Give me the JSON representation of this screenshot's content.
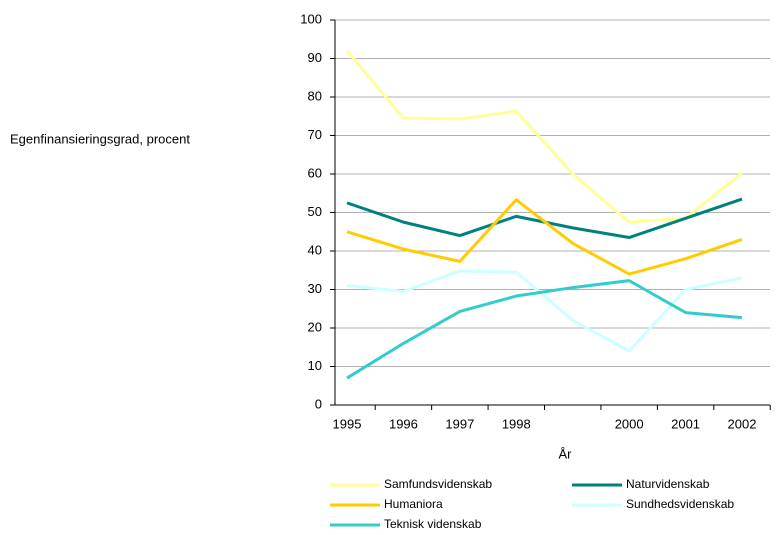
{
  "chart_data": {
    "type": "line",
    "y_label": "Egenfinansieringsgrad, procent",
    "x_label": "År",
    "categories": [
      "1995",
      "1996",
      "1997",
      "1998",
      null,
      "2000",
      "2001",
      "2002"
    ],
    "series": [
      {
        "name": "Samfundsvidenskab",
        "color": "#ffff99",
        "values": [
          92,
          74.5,
          74.3,
          76.3,
          60,
          47.5,
          48.5,
          60.3
        ]
      },
      {
        "name": "Naturvidenskab",
        "color": "#008080",
        "values": [
          52.5,
          47.5,
          44,
          49,
          46,
          43.5,
          48.5,
          53.5
        ]
      },
      {
        "name": "Humaniora",
        "color": "#ffcc00",
        "values": [
          45,
          40.5,
          37.3,
          53.3,
          42,
          34,
          38,
          43
        ]
      },
      {
        "name": "Sundhedsvidenskab",
        "color": "#ccffff",
        "values": [
          31,
          29.5,
          34.8,
          34.5,
          22,
          14,
          30,
          33
        ]
      },
      {
        "name": "Teknisk videnskab",
        "color": "#33cccc",
        "values": [
          7,
          16,
          24.3,
          28.3,
          30.5,
          32.3,
          24,
          22.7
        ]
      }
    ],
    "ylim": [
      0,
      100
    ],
    "yticks": [
      0,
      10,
      20,
      30,
      40,
      50,
      60,
      70,
      80,
      90,
      100
    ],
    "grid": true
  }
}
